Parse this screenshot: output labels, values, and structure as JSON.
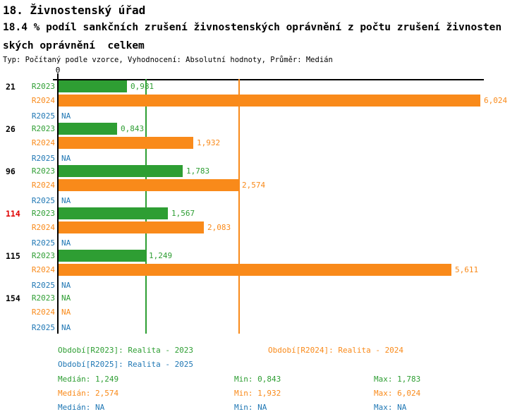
{
  "header": {
    "title": "18. Živnostenský úřad",
    "subtitle_line1": "18.4 % podíl sankčních zrušení živnostenských oprávnění z počtu zrušení živnosten",
    "subtitle_line2": "ských oprávnění  celkem",
    "meta": "Typ: Počítaný podle vzorce, Vyhodnocení: Absolutní hodnoty, Průměr: Medián"
  },
  "chart_data": {
    "type": "bar",
    "orientation": "horizontal",
    "title": "18. Živnostenský úřad",
    "subtitle": "18.4 % podíl sankčních zrušení živnostenských oprávnění z počtu zrušení živnostenských oprávnění  celkem",
    "meta": "Typ: Počítaný podle vzorce, Vyhodnocení: Absolutní hodnoty, Průměr: Medián",
    "x_axis": {
      "zero_label": "0",
      "min": 0,
      "max_visible": 6.1,
      "grid": false
    },
    "categories": [
      "21",
      "26",
      "96",
      "114",
      "115",
      "154"
    ],
    "highlighted_category": "114",
    "highlight_color": "#e00000",
    "na_text": "NA",
    "series": [
      {
        "name": "R2023",
        "color": "#2e9e33",
        "values": [
          0.981,
          0.843,
          1.783,
          1.567,
          1.249,
          null
        ],
        "value_labels": [
          "0,981",
          "0,843",
          "1,783",
          "1,567",
          "1,249",
          "NA"
        ]
      },
      {
        "name": "R2024",
        "color": "#f98a1a",
        "values": [
          6.024,
          1.932,
          2.574,
          2.083,
          5.611,
          null
        ],
        "value_labels": [
          "6,024",
          "1,932",
          "2,574",
          "2,083",
          "5,611",
          "NA"
        ]
      },
      {
        "name": "R2025",
        "color": "#1f77b4",
        "values": [
          null,
          null,
          null,
          null,
          null,
          null
        ],
        "value_labels": [
          "NA",
          "NA",
          "NA",
          "NA",
          "NA",
          "NA"
        ]
      }
    ],
    "median_lines": [
      {
        "series": "R2023",
        "value": 1.249,
        "color": "#2e9e33"
      },
      {
        "series": "R2024",
        "value": 2.574,
        "color": "#f98a1a"
      }
    ]
  },
  "legend": {
    "r2023": "Období[R2023]: Realita - 2023",
    "r2024": "Období[R2024]: Realita - 2024",
    "r2025": "Období[R2025]: Realita - 2025"
  },
  "stats": {
    "r2023": {
      "median": "Medián: 1,249",
      "min": "Min: 0,843",
      "max": "Max: 1,783"
    },
    "r2024": {
      "median": "Medián: 2,574",
      "min": "Min: 1,932",
      "max": "Max: 6,024"
    },
    "r2025": {
      "median": "Medián: NA",
      "min": "Min: NA",
      "max": "Max: NA"
    }
  }
}
